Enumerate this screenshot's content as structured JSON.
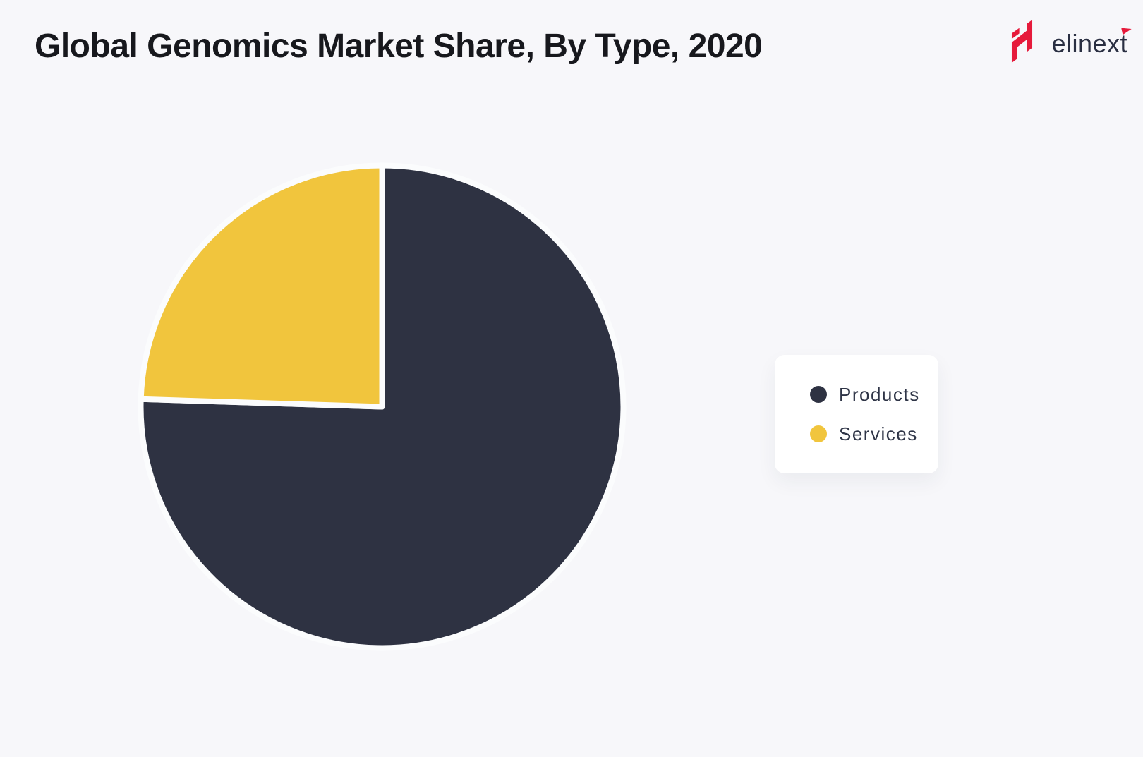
{
  "header": {
    "title": "Global Genomics Market Share, By Type, 2020",
    "logo_text": "elinext"
  },
  "chart_data": {
    "type": "pie",
    "title": "Global Genomics Market Share, By Type, 2020",
    "labels": [
      "Products",
      "Services"
    ],
    "values": [
      75.5,
      24.5
    ],
    "unit": "percent",
    "colors": [
      "#2E3242",
      "#F1C53D"
    ],
    "slice_stroke_color": "#FBFCFD",
    "start_angle": "12-oclock",
    "direction": "clockwise",
    "legend_position": "middle-right",
    "data_labels_shown": false
  },
  "colors": {
    "background": "#F7F7FA",
    "legend_card": "#FFFFFF",
    "title_text": "#17181D",
    "legend_text": "#2F3547",
    "logo_red": "#E61A3B",
    "logo_text": "#2A2F42"
  }
}
